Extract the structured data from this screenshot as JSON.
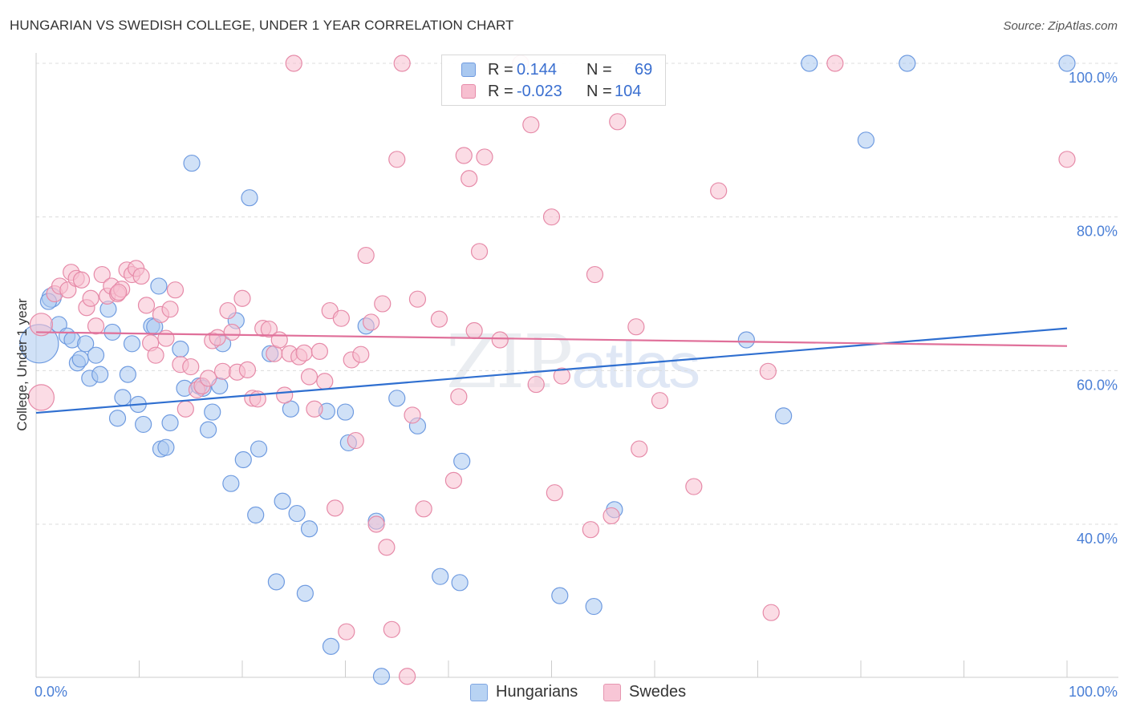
{
  "title": "HUNGARIAN VS SWEDISH COLLEGE, UNDER 1 YEAR CORRELATION CHART",
  "source": "Source: ZipAtlas.com",
  "watermark": {
    "zip": "ZIP",
    "atlas": "atlas"
  },
  "legend": {
    "rows": [
      {
        "r_label": "R =",
        "r_value": "0.144",
        "n_label": "N =",
        "n_value": "69",
        "color": "#a9c8f0",
        "border": "#6f9be0"
      },
      {
        "r_label": "R =",
        "r_value": "-0.023",
        "n_label": "N =",
        "n_value": "104",
        "color": "#f7bfd0",
        "border": "#e68aa8"
      }
    ]
  },
  "bottom_legend": [
    {
      "label": "Hungarians",
      "color": "#b8d3f3",
      "border": "#7fa6e2"
    },
    {
      "label": "Swedes",
      "color": "#f8c6d6",
      "border": "#e696b0"
    }
  ],
  "chart_data": {
    "type": "scatter",
    "title": "HUNGARIAN VS SWEDISH COLLEGE, UNDER 1 YEAR CORRELATION CHART",
    "xlabel": "",
    "ylabel": "College, Under 1 year",
    "xlim": [
      0,
      100
    ],
    "ylim": [
      20,
      102
    ],
    "x_tick_labels": [
      "0.0%",
      "100.0%"
    ],
    "y_ticks": [
      40,
      60,
      80,
      100
    ],
    "y_tick_labels": [
      "40.0%",
      "60.0%",
      "80.0%",
      "100.0%"
    ],
    "grid": true,
    "legend_placement": "top-center",
    "series": [
      {
        "name": "Hungarians",
        "color": "#6f9be0",
        "fill": "#a9c8f0",
        "trend": {
          "x": [
            0,
            100
          ],
          "y": [
            54.5,
            65.5
          ],
          "color": "#2f6fd0"
        },
        "points": [
          [
            1.5,
            69.5,
            12
          ],
          [
            0.3,
            63.5,
            24
          ],
          [
            2.2,
            66.0,
            10
          ],
          [
            3.0,
            64.5,
            10
          ],
          [
            3.5,
            64.0,
            10
          ],
          [
            4.0,
            61.0,
            10
          ],
          [
            4.3,
            61.5,
            10
          ],
          [
            4.8,
            63.5,
            10
          ],
          [
            5.2,
            59.0,
            10
          ],
          [
            5.8,
            62.0,
            10
          ],
          [
            6.2,
            59.5,
            10
          ],
          [
            7.0,
            68.0,
            10
          ],
          [
            7.4,
            65.0,
            10
          ],
          [
            7.9,
            53.8,
            10
          ],
          [
            8.4,
            56.5,
            10
          ],
          [
            8.9,
            59.5,
            10
          ],
          [
            9.3,
            63.5,
            10
          ],
          [
            9.9,
            55.6,
            10
          ],
          [
            10.4,
            53.0,
            10
          ],
          [
            11.2,
            65.8,
            10
          ],
          [
            11.5,
            65.7,
            10
          ],
          [
            11.9,
            71.0,
            10
          ],
          [
            12.1,
            49.8,
            10
          ],
          [
            12.6,
            50.0,
            10
          ],
          [
            13.0,
            53.2,
            10
          ],
          [
            14.0,
            62.8,
            10
          ],
          [
            14.4,
            57.7,
            10
          ],
          [
            15.1,
            87.0,
            10
          ],
          [
            15.8,
            58.0,
            10
          ],
          [
            16.2,
            57.7,
            10
          ],
          [
            16.7,
            52.3,
            10
          ],
          [
            17.1,
            54.6,
            10
          ],
          [
            17.8,
            58.0,
            10
          ],
          [
            18.1,
            63.5,
            10
          ],
          [
            18.9,
            45.3,
            10
          ],
          [
            19.4,
            66.5,
            10
          ],
          [
            20.1,
            48.4,
            10
          ],
          [
            20.7,
            82.5,
            10
          ],
          [
            21.3,
            41.2,
            10
          ],
          [
            21.6,
            49.8,
            10
          ],
          [
            22.7,
            62.2,
            10
          ],
          [
            23.3,
            32.5,
            10
          ],
          [
            23.9,
            43.0,
            10
          ],
          [
            24.7,
            55.0,
            10
          ],
          [
            25.3,
            41.4,
            10
          ],
          [
            26.1,
            31.0,
            10
          ],
          [
            26.5,
            39.4,
            10
          ],
          [
            28.2,
            54.7,
            10
          ],
          [
            28.6,
            24.1,
            10
          ],
          [
            30.0,
            54.6,
            10
          ],
          [
            30.3,
            50.6,
            10
          ],
          [
            32.0,
            65.8,
            10
          ],
          [
            33.0,
            40.4,
            10
          ],
          [
            33.5,
            20.2,
            10
          ],
          [
            35.0,
            56.4,
            10
          ],
          [
            37.0,
            52.8,
            10
          ],
          [
            39.2,
            33.2,
            10
          ],
          [
            41.1,
            32.4,
            10
          ],
          [
            41.3,
            48.2,
            10
          ],
          [
            50.8,
            30.7,
            10
          ],
          [
            54.1,
            29.3,
            10
          ],
          [
            56.1,
            41.9,
            10
          ],
          [
            68.9,
            64.0,
            10
          ],
          [
            72.5,
            54.1,
            10
          ],
          [
            75.0,
            100.0,
            10
          ],
          [
            80.5,
            90.0,
            10
          ],
          [
            84.5,
            100.0,
            10
          ],
          [
            100.0,
            100.0,
            10
          ],
          [
            1.2,
            69.0,
            10
          ]
        ]
      },
      {
        "name": "Swedes",
        "color": "#e68aa8",
        "fill": "#f7bfd0",
        "trend": {
          "x": [
            0,
            100
          ],
          "y": [
            65.0,
            63.2
          ],
          "color": "#e0709a"
        },
        "points": [
          [
            0.5,
            56.5,
            16
          ],
          [
            0.5,
            66.0,
            14
          ],
          [
            1.8,
            70.0,
            10
          ],
          [
            2.3,
            71.0,
            10
          ],
          [
            3.1,
            70.5,
            10
          ],
          [
            3.4,
            72.8,
            10
          ],
          [
            3.9,
            72.0,
            10
          ],
          [
            4.4,
            71.8,
            10
          ],
          [
            4.9,
            68.2,
            10
          ],
          [
            5.3,
            69.4,
            10
          ],
          [
            5.8,
            65.8,
            10
          ],
          [
            6.4,
            72.5,
            10
          ],
          [
            6.9,
            69.7,
            10
          ],
          [
            7.3,
            71.0,
            10
          ],
          [
            7.9,
            70.0,
            10
          ],
          [
            8.3,
            70.6,
            10
          ],
          [
            8.8,
            73.1,
            10
          ],
          [
            9.3,
            72.5,
            10
          ],
          [
            9.7,
            73.3,
            10
          ],
          [
            10.2,
            72.3,
            10
          ],
          [
            10.7,
            68.5,
            10
          ],
          [
            11.1,
            63.6,
            10
          ],
          [
            11.6,
            62.0,
            10
          ],
          [
            12.1,
            67.3,
            10
          ],
          [
            12.6,
            64.2,
            10
          ],
          [
            13.0,
            68.0,
            10
          ],
          [
            13.5,
            70.5,
            10
          ],
          [
            14.0,
            60.8,
            10
          ],
          [
            14.5,
            55.0,
            10
          ],
          [
            15.0,
            60.5,
            10
          ],
          [
            15.6,
            57.5,
            10
          ],
          [
            16.1,
            58.0,
            10
          ],
          [
            16.7,
            59.0,
            10
          ],
          [
            17.1,
            63.9,
            10
          ],
          [
            17.6,
            64.3,
            10
          ],
          [
            18.1,
            59.9,
            10
          ],
          [
            18.6,
            67.8,
            10
          ],
          [
            19.0,
            65.0,
            10
          ],
          [
            19.5,
            59.8,
            10
          ],
          [
            20.0,
            69.4,
            10
          ],
          [
            20.5,
            60.1,
            10
          ],
          [
            21.0,
            56.4,
            10
          ],
          [
            21.5,
            56.3,
            10
          ],
          [
            22.0,
            65.5,
            10
          ],
          [
            22.6,
            65.4,
            10
          ],
          [
            23.1,
            62.2,
            10
          ],
          [
            23.6,
            64.0,
            10
          ],
          [
            24.1,
            56.8,
            10
          ],
          [
            24.6,
            62.2,
            10
          ],
          [
            25.0,
            100.0,
            10
          ],
          [
            25.5,
            61.8,
            10
          ],
          [
            26.0,
            62.3,
            10
          ],
          [
            26.5,
            59.2,
            10
          ],
          [
            27.0,
            55.0,
            10
          ],
          [
            27.5,
            62.5,
            10
          ],
          [
            28.0,
            58.6,
            10
          ],
          [
            28.5,
            67.8,
            10
          ],
          [
            29.0,
            42.1,
            10
          ],
          [
            29.6,
            66.8,
            10
          ],
          [
            30.1,
            26.0,
            10
          ],
          [
            30.6,
            61.4,
            10
          ],
          [
            31.0,
            50.9,
            10
          ],
          [
            31.5,
            62.1,
            10
          ],
          [
            32.0,
            75.0,
            10
          ],
          [
            32.5,
            66.3,
            10
          ],
          [
            33.0,
            40.0,
            10
          ],
          [
            33.6,
            68.7,
            10
          ],
          [
            34.0,
            37.0,
            10
          ],
          [
            34.5,
            26.3,
            10
          ],
          [
            35.0,
            87.5,
            10
          ],
          [
            35.5,
            100.0,
            10
          ],
          [
            36.0,
            20.2,
            10
          ],
          [
            36.5,
            54.2,
            10
          ],
          [
            37.0,
            69.3,
            10
          ],
          [
            37.6,
            42.0,
            10
          ],
          [
            39.1,
            66.7,
            10
          ],
          [
            40.5,
            45.7,
            10
          ],
          [
            41.0,
            56.6,
            10
          ],
          [
            41.5,
            88.0,
            10
          ],
          [
            42.0,
            85.0,
            10
          ],
          [
            42.5,
            65.2,
            10
          ],
          [
            43.0,
            75.5,
            10
          ],
          [
            43.5,
            87.8,
            10
          ],
          [
            45.0,
            64.0,
            10
          ],
          [
            47.0,
            100.0,
            10
          ],
          [
            48.0,
            92.0,
            10
          ],
          [
            48.5,
            58.2,
            10
          ],
          [
            50.0,
            80.0,
            10
          ],
          [
            50.3,
            44.1,
            10
          ],
          [
            51.0,
            59.3,
            10
          ],
          [
            53.8,
            39.3,
            10
          ],
          [
            54.2,
            72.5,
            10
          ],
          [
            55.8,
            41.1,
            10
          ],
          [
            56.4,
            92.4,
            10
          ],
          [
            58.2,
            65.7,
            10
          ],
          [
            58.5,
            49.8,
            10
          ],
          [
            60.5,
            56.1,
            10
          ],
          [
            63.8,
            44.9,
            10
          ],
          [
            66.2,
            83.4,
            10
          ],
          [
            71.0,
            59.9,
            10
          ],
          [
            71.3,
            28.5,
            10
          ],
          [
            77.5,
            100.0,
            10
          ],
          [
            100.0,
            87.5,
            10
          ],
          [
            8.0,
            70.2,
            10
          ]
        ]
      }
    ]
  }
}
